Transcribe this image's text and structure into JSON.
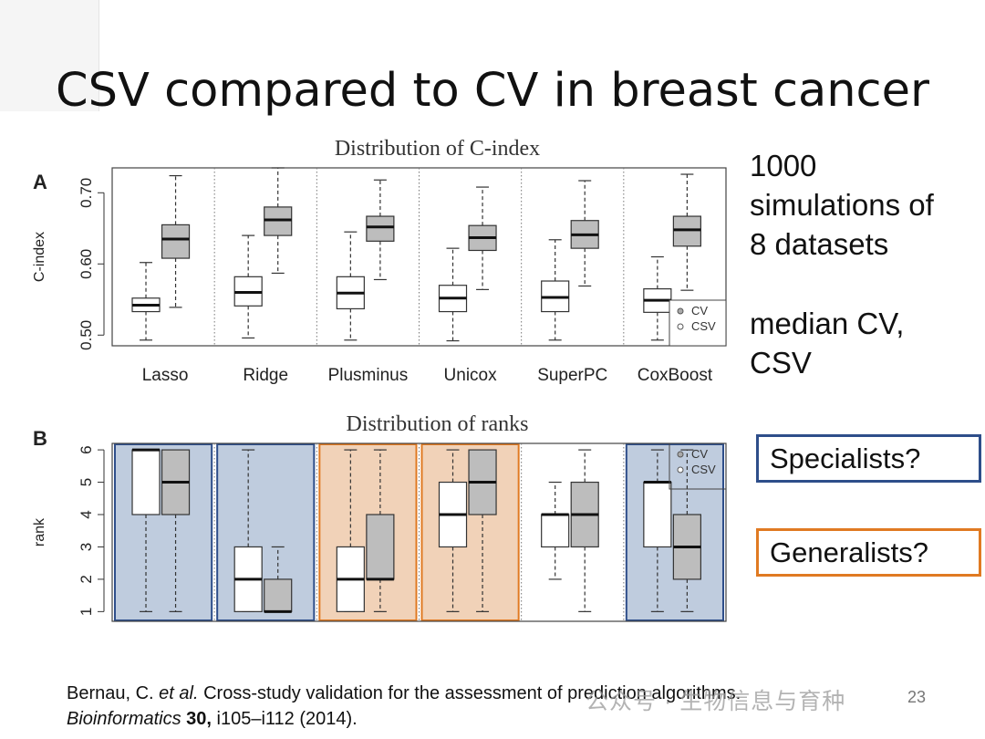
{
  "slide": {
    "title": "CSV compared to CV in breast cancer",
    "side_text_1": [
      "1000",
      "simulations of",
      "8 datasets"
    ],
    "side_text_2": [
      "median CV,",
      "CSV"
    ],
    "box_specialists": "Specialists?",
    "box_generalists": "Generalists?",
    "citation": {
      "line1_pre": "Bernau, C. ",
      "line1_italic": "et al.",
      "line1_post": " Cross-study validation for the assessment of prediction algorithms.",
      "line2_italic": "Bioinformatics",
      "line2_bold": "30,",
      "line2_post": " i105–i112 (2014)."
    },
    "watermark": "公众号 · 生物信息与育种",
    "page_number": "23"
  },
  "colors": {
    "cv_fill": "#ffffff",
    "csv_fill": "#bdbdbd",
    "specialist_highlight": "#2e4e8a",
    "generalist_highlight": "#e07a22"
  },
  "chart_data": [
    {
      "type": "boxplot",
      "panel_label": "A",
      "title": "Distribution of C-index",
      "ylabel": "C-index",
      "xlabel": "",
      "ylim": [
        0.485,
        0.735
      ],
      "yticks": [
        0.5,
        0.6,
        0.7
      ],
      "ytick_labels": [
        "0.50",
        "0.60",
        "0.70"
      ],
      "categories": [
        "Lasso",
        "Ridge",
        "Plusminus",
        "Unicox",
        "SuperPC",
        "CoxBoost"
      ],
      "legend": {
        "position": "bottom-right",
        "entries": [
          "CV",
          "CSV"
        ]
      },
      "series": [
        {
          "name": "CV",
          "boxes": [
            [
              0.493,
              0.533,
              0.542,
              0.552,
              0.602
            ],
            [
              0.496,
              0.541,
              0.56,
              0.582,
              0.64
            ],
            [
              0.493,
              0.537,
              0.559,
              0.582,
              0.645
            ],
            [
              0.492,
              0.533,
              0.552,
              0.57,
              0.622
            ],
            [
              0.493,
              0.533,
              0.553,
              0.576,
              0.634
            ],
            [
              0.493,
              0.532,
              0.549,
              0.565,
              0.61
            ]
          ]
        },
        {
          "name": "CSV",
          "boxes": [
            [
              0.539,
              0.608,
              0.635,
              0.655,
              0.724
            ],
            [
              0.587,
              0.64,
              0.662,
              0.68,
              0.735
            ],
            [
              0.578,
              0.632,
              0.652,
              0.667,
              0.718
            ],
            [
              0.564,
              0.619,
              0.637,
              0.654,
              0.708
            ],
            [
              0.569,
              0.622,
              0.641,
              0.661,
              0.717
            ],
            [
              0.563,
              0.625,
              0.648,
              0.667,
              0.726
            ]
          ]
        }
      ]
    },
    {
      "type": "boxplot",
      "panel_label": "B",
      "title": "Distribution of ranks",
      "ylabel": "rank",
      "xlabel": "",
      "ylim": [
        0.7,
        6.2
      ],
      "yticks": [
        1,
        2,
        3,
        4,
        5,
        6
      ],
      "ytick_labels": [
        "1",
        "2",
        "3",
        "4",
        "5",
        "6"
      ],
      "categories": [
        "Lasso",
        "Ridge",
        "Plusminus",
        "Unicox",
        "SuperPC",
        "CoxBoost"
      ],
      "legend": {
        "position": "top-right",
        "entries": [
          "CV",
          "CSV"
        ]
      },
      "highlights": [
        "specialist",
        "specialist",
        "generalist",
        "generalist",
        "none",
        "specialist"
      ],
      "series": [
        {
          "name": "CV",
          "boxes": [
            [
              1,
              4,
              6,
              6,
              6
            ],
            [
              1,
              1,
              2,
              3,
              6
            ],
            [
              1,
              1,
              2,
              3,
              6
            ],
            [
              1,
              3,
              4,
              5,
              6
            ],
            [
              2,
              3,
              4,
              4,
              5
            ],
            [
              1,
              3,
              5,
              5,
              6
            ]
          ]
        },
        {
          "name": "CSV",
          "boxes": [
            [
              1,
              4,
              5,
              6,
              6
            ],
            [
              1,
              1,
              1,
              2,
              3
            ],
            [
              1,
              2,
              2,
              4,
              6
            ],
            [
              1,
              4,
              5,
              6,
              6
            ],
            [
              1,
              3,
              4,
              5,
              6
            ],
            [
              1,
              2,
              3,
              4,
              6
            ]
          ]
        }
      ]
    }
  ]
}
